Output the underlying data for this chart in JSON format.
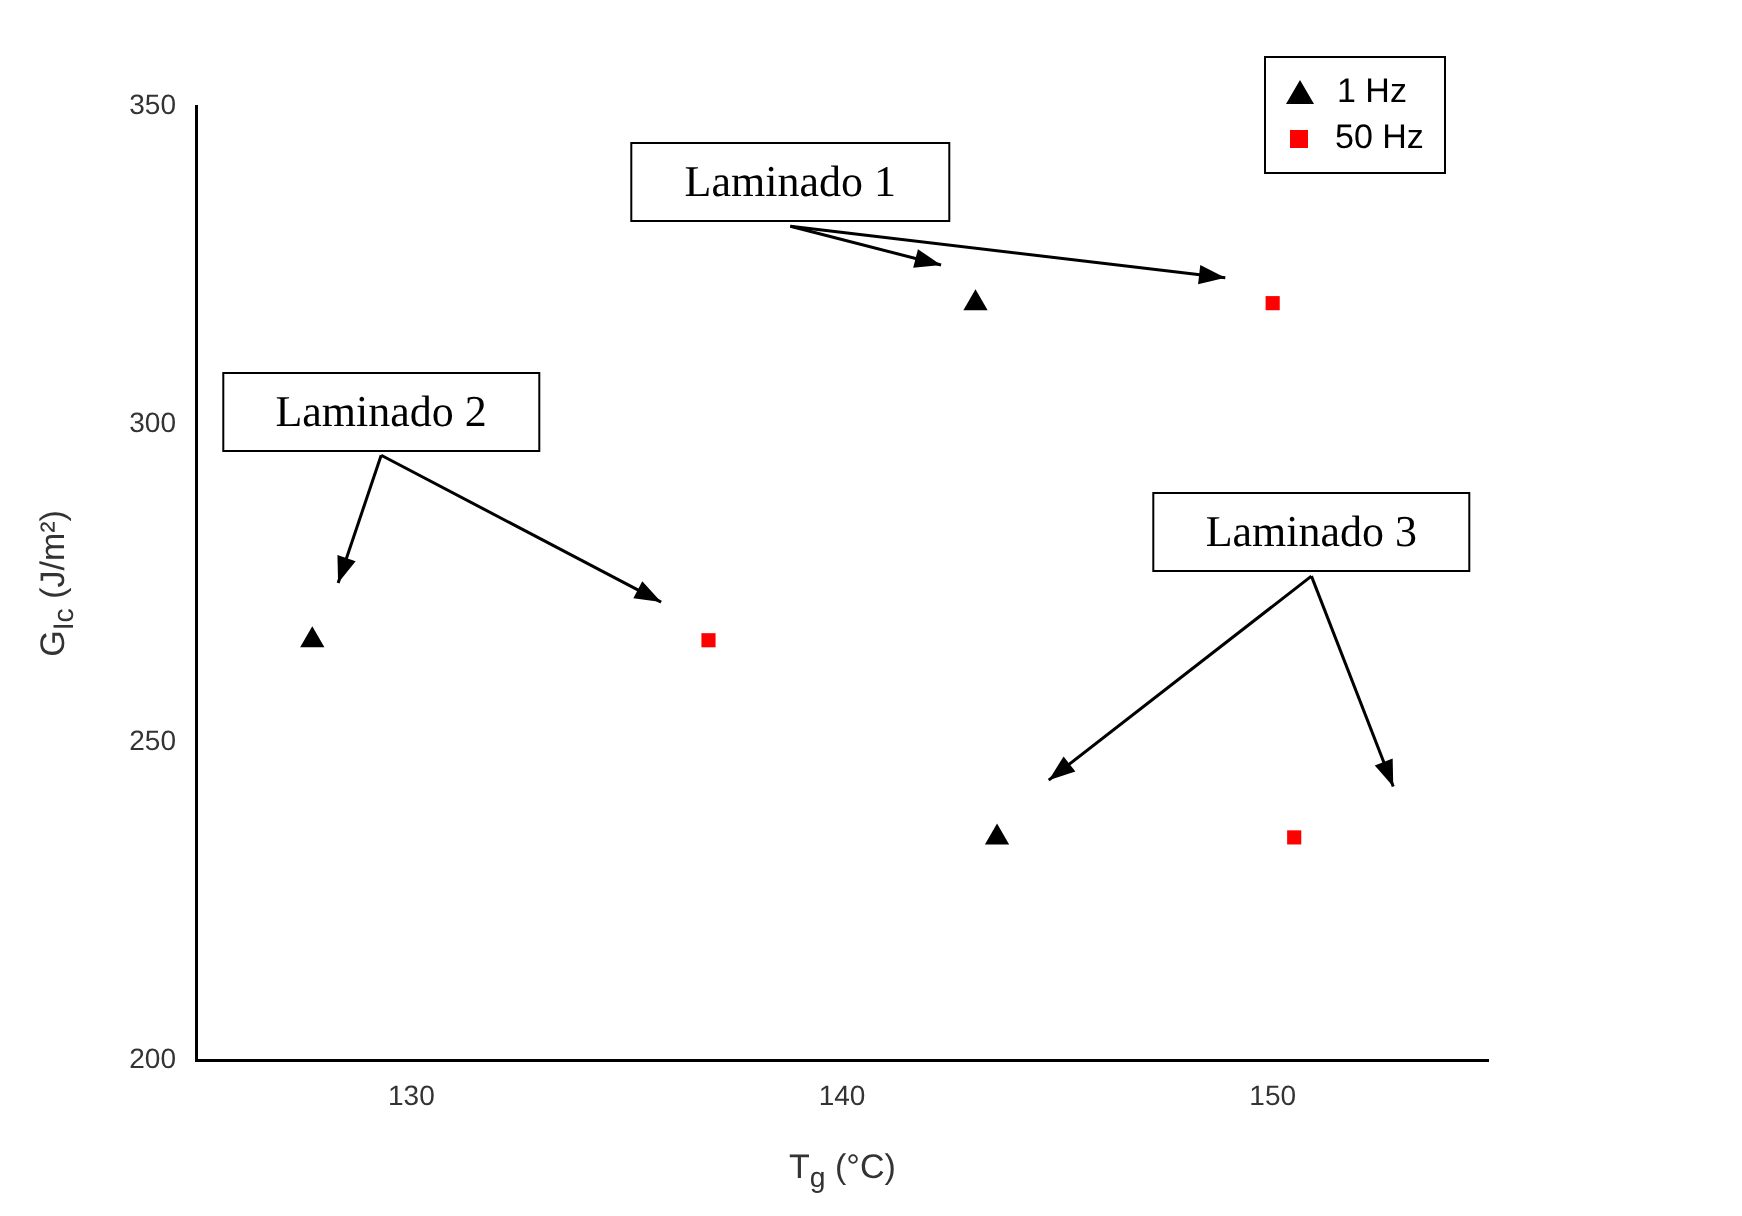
{
  "chart_data": {
    "type": "scatter",
    "xlabel": "T$_{g}$ (°C)",
    "ylabel": "G$_{Ic}$ (J/m²)",
    "series": [
      {
        "name": "1 Hz",
        "color": "#000000",
        "marker": "triangle",
        "x": [
          127.7,
          143.1,
          143.6
        ],
        "values": [
          266,
          319,
          235
        ]
      },
      {
        "name": "50 Hz",
        "color": "#ff0000",
        "marker": "square",
        "x": [
          136.9,
          150,
          150.5
        ],
        "values": [
          266,
          319,
          235
        ]
      }
    ],
    "xlim": [
      125,
      155
    ],
    "xticks": [
      130,
      140,
      150
    ],
    "ylim": [
      200,
      350
    ],
    "yticks": [
      200,
      250,
      300,
      350
    ],
    "grid": false,
    "legend": "top right",
    "annotations": [
      "Laminado 1",
      "Laminado 2",
      "Laminado 3"
    ]
  }
}
